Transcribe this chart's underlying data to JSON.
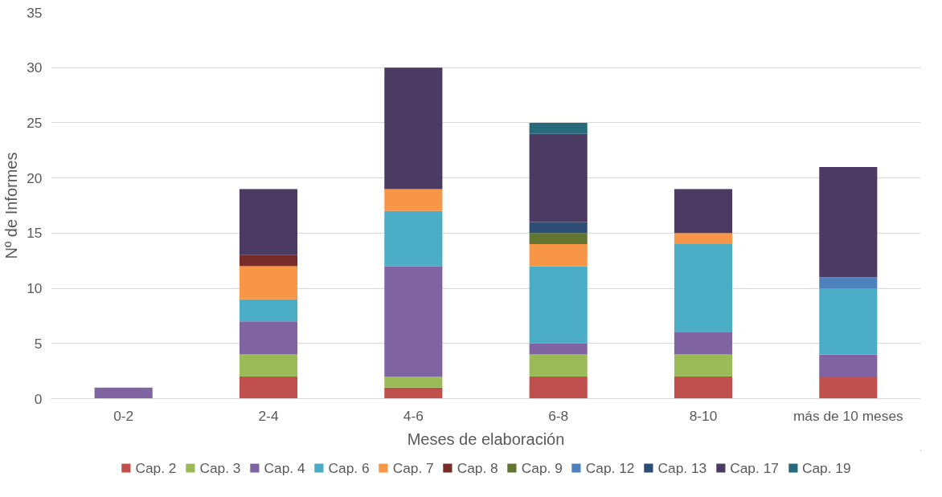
{
  "chart_data": {
    "type": "bar",
    "stacked": true,
    "xlabel": "Meses de elaboración",
    "ylabel": "Nº de Informes",
    "categories": [
      "0-2",
      "2-4",
      "4-6",
      "6-8",
      "8-10",
      "más de 10 meses"
    ],
    "ylim": [
      0,
      35
    ],
    "yticks": [
      0,
      5,
      10,
      15,
      20,
      25,
      30,
      35
    ],
    "grid": "y",
    "legend": "bottom",
    "series": [
      {
        "name": "Cap. 2",
        "color": "#c0504d",
        "values": [
          null,
          2,
          1,
          2,
          2,
          2
        ]
      },
      {
        "name": "Cap. 3",
        "color": "#9bbb59",
        "values": [
          null,
          2,
          1,
          2,
          2,
          null
        ]
      },
      {
        "name": "Cap. 4",
        "color": "#8064a2",
        "values": [
          1,
          3,
          10,
          1,
          2,
          2
        ]
      },
      {
        "name": "Cap. 6",
        "color": "#4bacc6",
        "values": [
          null,
          2,
          5,
          7,
          8,
          6
        ]
      },
      {
        "name": "Cap. 7",
        "color": "#f79646",
        "values": [
          null,
          3,
          2,
          2,
          1,
          null
        ]
      },
      {
        "name": "Cap. 8",
        "color": "#772c2a",
        "values": [
          null,
          1,
          null,
          null,
          null,
          null
        ]
      },
      {
        "name": "Cap. 9",
        "color": "#5f7530",
        "values": [
          null,
          null,
          null,
          1,
          null,
          null
        ]
      },
      {
        "name": "Cap. 12",
        "color": "#4f81bd",
        "values": [
          null,
          null,
          null,
          null,
          null,
          1
        ]
      },
      {
        "name": "Cap. 13",
        "color": "#2c4d75",
        "values": [
          null,
          null,
          null,
          1,
          null,
          null
        ]
      },
      {
        "name": "Cap. 17",
        "color": "#4b3a61",
        "values": [
          null,
          6,
          11,
          8,
          4,
          10
        ]
      },
      {
        "name": "Cap. 19",
        "color": "#276a7c",
        "values": [
          null,
          null,
          null,
          1,
          null,
          null
        ]
      }
    ]
  }
}
